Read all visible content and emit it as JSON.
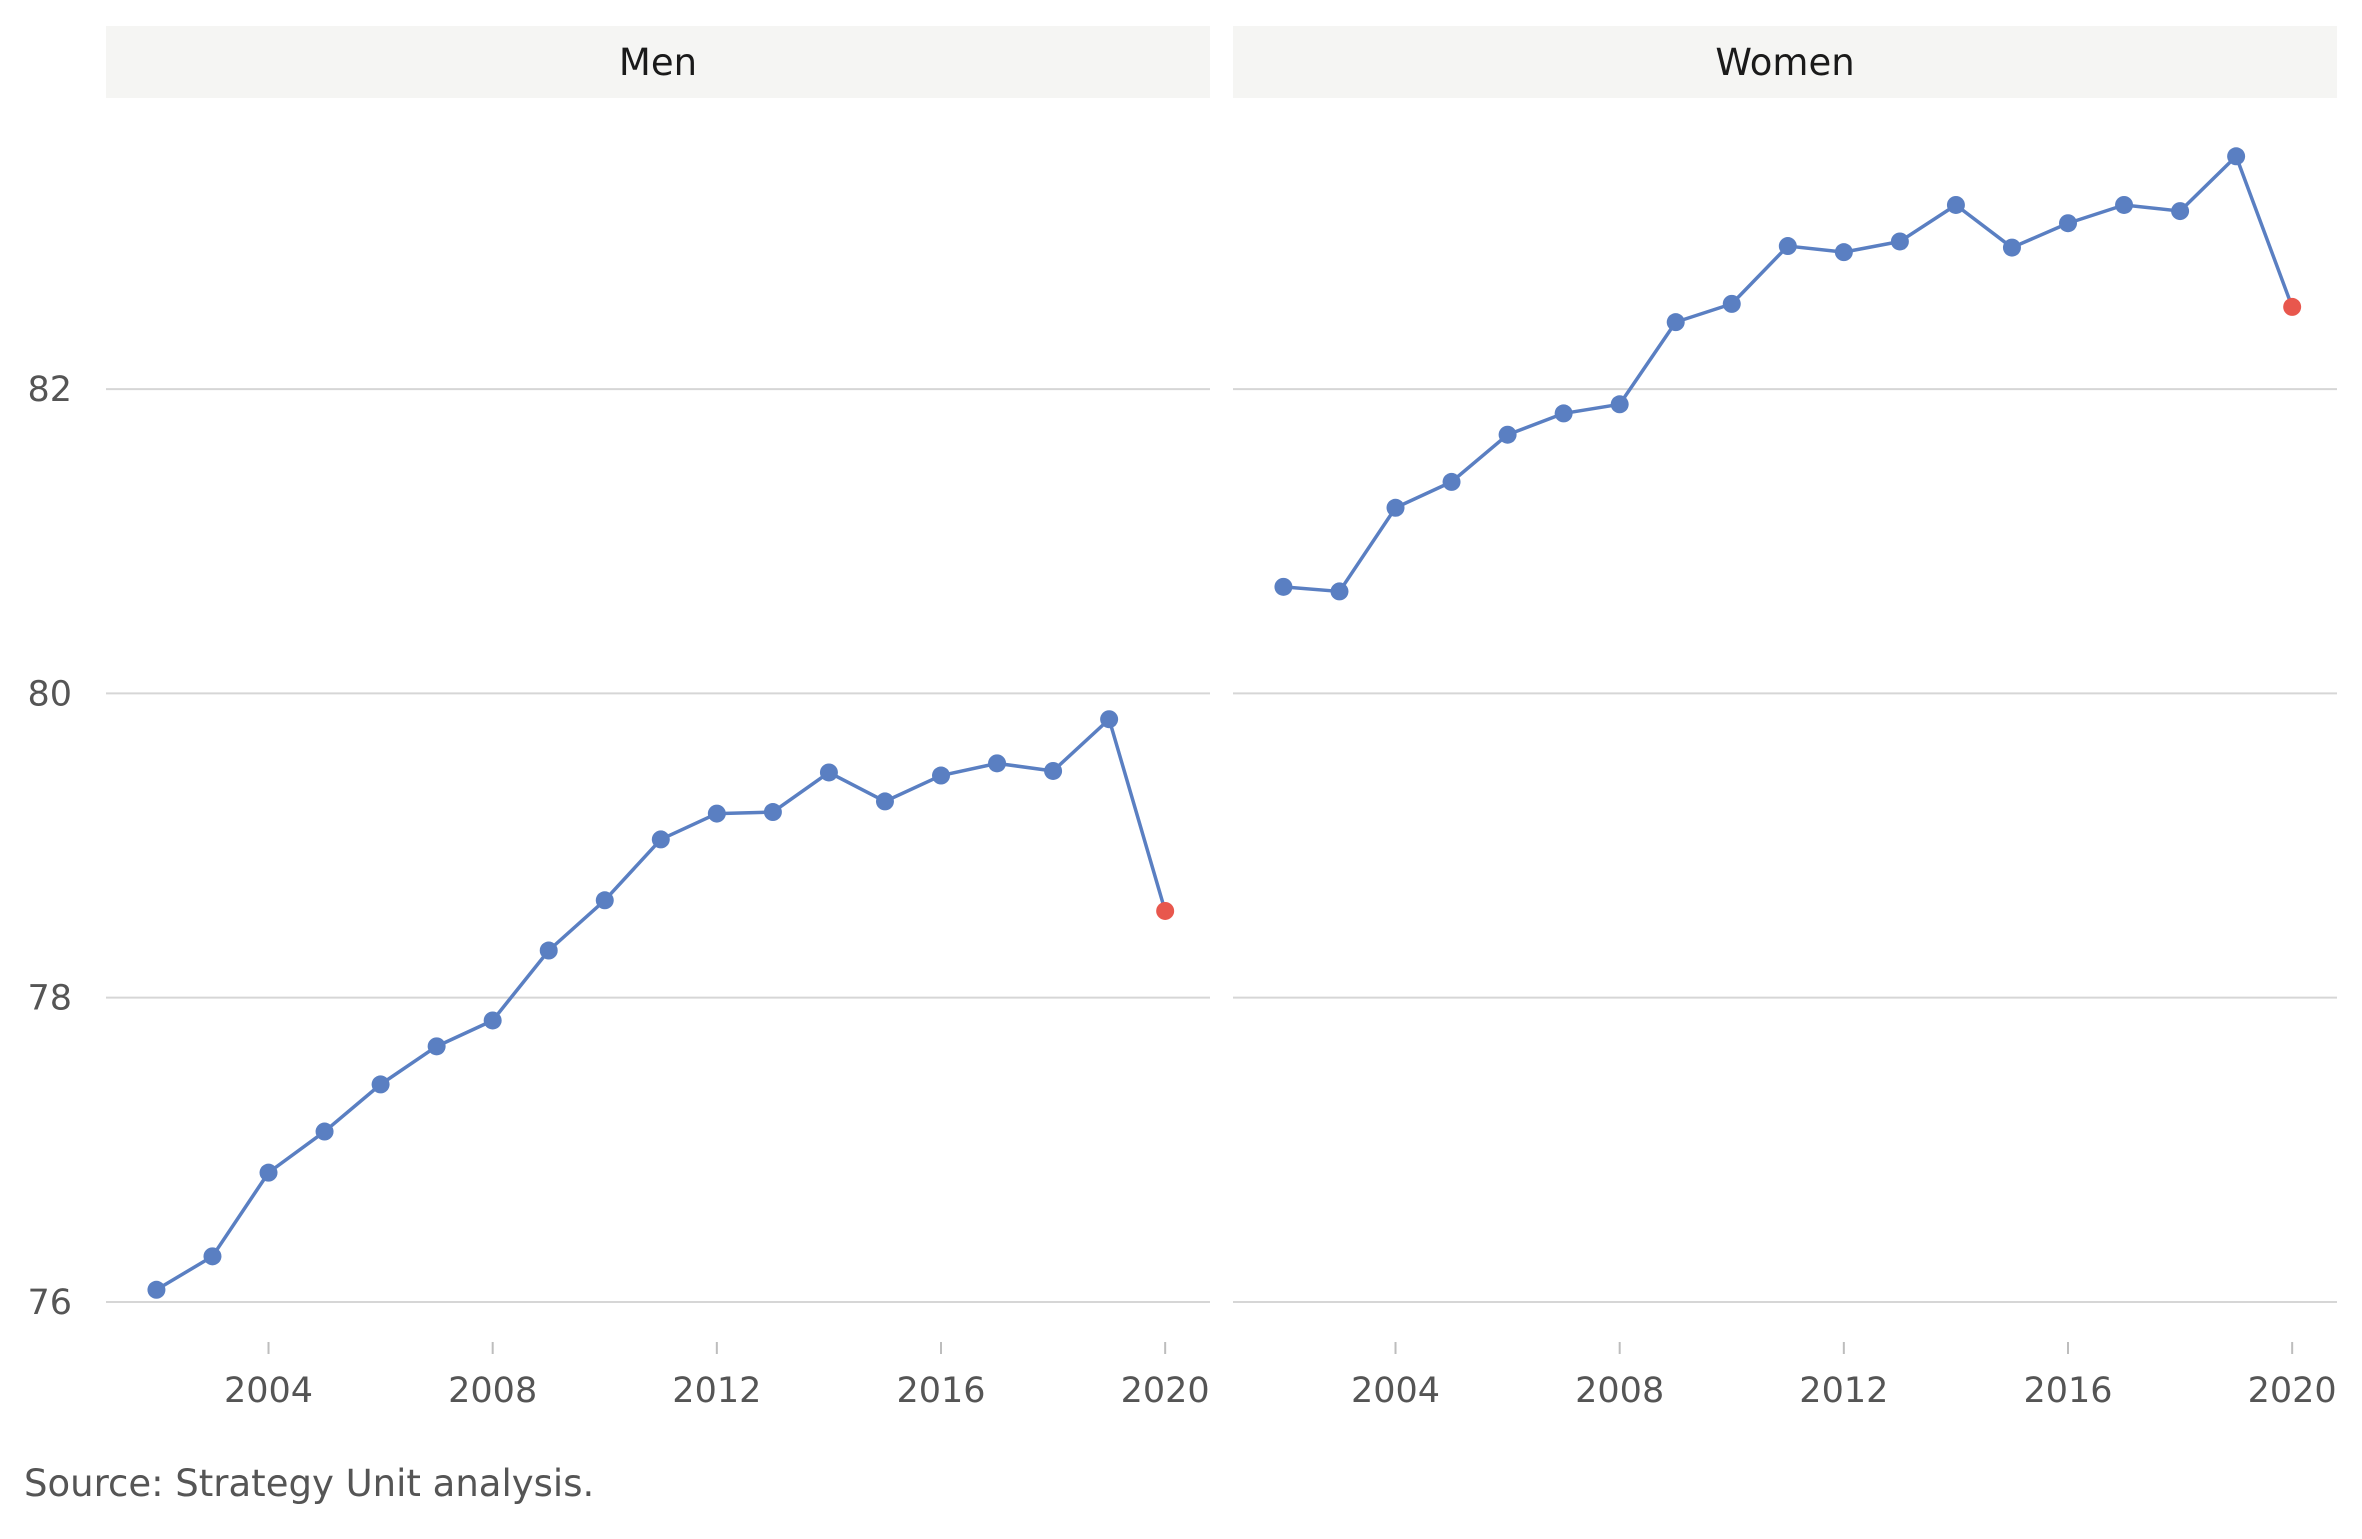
{
  "chart_data": {
    "type": "line",
    "title": "",
    "xlabel": "",
    "ylabel": "",
    "xlim": [
      2001.1,
      2020.8
    ],
    "ylim": [
      75.75,
      83.9
    ],
    "grid": true,
    "facet_layout": "two panels side by side, shared y-axis on left",
    "x_ticks": [
      2004,
      2008,
      2012,
      2016,
      2020
    ],
    "y_ticks": [
      76,
      78,
      80,
      82
    ],
    "panels": [
      {
        "name": "Men",
        "x": [
          2002,
          2003,
          2004,
          2005,
          2006,
          2007,
          2008,
          2009,
          2010,
          2011,
          2012,
          2013,
          2014,
          2015,
          2016,
          2017,
          2018,
          2019
        ],
        "y": [
          76.08,
          76.3,
          76.85,
          77.12,
          77.43,
          77.68,
          77.85,
          78.31,
          78.64,
          79.04,
          79.21,
          79.22,
          79.48,
          79.29,
          79.46,
          79.54,
          79.49,
          79.83
        ],
        "highlight": {
          "x": 2020,
          "y": 78.57
        }
      },
      {
        "name": "Women",
        "x": [
          2002,
          2003,
          2004,
          2005,
          2006,
          2007,
          2008,
          2009,
          2010,
          2011,
          2012,
          2013,
          2014,
          2015,
          2016,
          2017,
          2018,
          2019
        ],
        "y": [
          80.7,
          80.67,
          81.22,
          81.39,
          81.7,
          81.84,
          81.9,
          82.44,
          82.56,
          82.94,
          82.9,
          82.97,
          83.21,
          82.93,
          83.09,
          83.21,
          83.17,
          83.53
        ],
        "highlight": {
          "x": 2020,
          "y": 82.54
        }
      }
    ],
    "colors": {
      "series": "#5a7fc2",
      "highlight": "#e8574d",
      "grid": "#d6d6d6",
      "strip_background": "#f5f5f3"
    }
  },
  "caption": "Source: Strategy Unit analysis."
}
